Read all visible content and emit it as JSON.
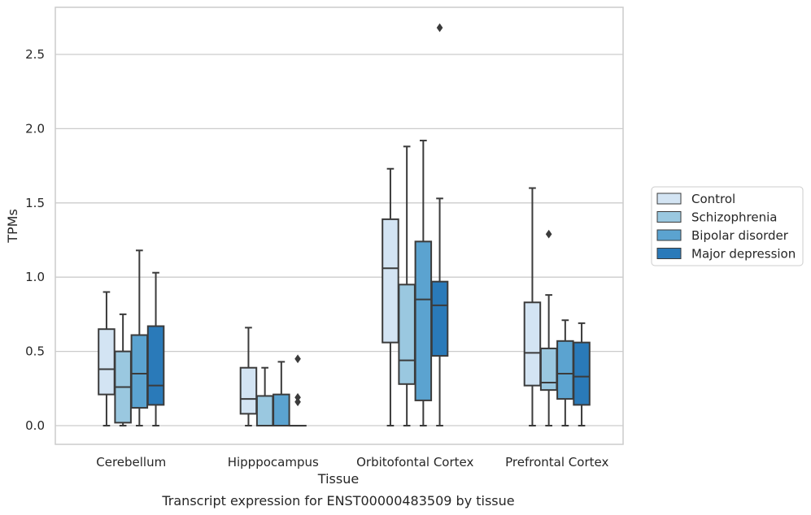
{
  "chart_data": {
    "type": "box",
    "caption": "Transcript expression for ENST00000483509 by tissue",
    "xlabel": "Tissue",
    "ylabel": "TPMs",
    "ylim": [
      -0.13,
      2.83
    ],
    "yticks": [
      "0.0",
      "0.5",
      "1.0",
      "1.5",
      "2.0",
      "2.5"
    ],
    "grid": "horizontal",
    "legend_position": "right",
    "categories": [
      "Cerebellum",
      "Hipppocampus",
      "Orbitofontal Cortex",
      "Prefrontal Cortex"
    ],
    "series": [
      {
        "name": "Control",
        "color": "#d3e4f3",
        "boxes": [
          {
            "whislo": 0.0,
            "q1": 0.21,
            "median": 0.38,
            "q3": 0.65,
            "whishi": 0.9,
            "fliers": []
          },
          {
            "whislo": 0.0,
            "q1": 0.08,
            "median": 0.18,
            "q3": 0.39,
            "whishi": 0.66,
            "fliers": []
          },
          {
            "whislo": 0.0,
            "q1": 0.56,
            "median": 1.06,
            "q3": 1.39,
            "whishi": 1.73,
            "fliers": []
          },
          {
            "whislo": 0.0,
            "q1": 0.27,
            "median": 0.49,
            "q3": 0.83,
            "whishi": 1.6,
            "fliers": []
          }
        ]
      },
      {
        "name": "Schizophrenia",
        "color": "#9ac8e0",
        "boxes": [
          {
            "whislo": 0.0,
            "q1": 0.02,
            "median": 0.26,
            "q3": 0.5,
            "whishi": 0.75,
            "fliers": []
          },
          {
            "whislo": 0.0,
            "q1": 0.0,
            "median": 0.0,
            "q3": 0.2,
            "whishi": 0.39,
            "fliers": []
          },
          {
            "whislo": 0.0,
            "q1": 0.28,
            "median": 0.44,
            "q3": 0.95,
            "whishi": 1.88,
            "fliers": []
          },
          {
            "whislo": 0.0,
            "q1": 0.24,
            "median": 0.29,
            "q3": 0.52,
            "whishi": 0.88,
            "fliers": [
              1.29
            ]
          }
        ]
      },
      {
        "name": "Bipolar disorder",
        "color": "#5ba3d0",
        "boxes": [
          {
            "whislo": 0.0,
            "q1": 0.12,
            "median": 0.35,
            "q3": 0.61,
            "whishi": 1.18,
            "fliers": []
          },
          {
            "whislo": 0.0,
            "q1": 0.0,
            "median": 0.0,
            "q3": 0.21,
            "whishi": 0.43,
            "fliers": []
          },
          {
            "whislo": 0.0,
            "q1": 0.17,
            "median": 0.85,
            "q3": 1.24,
            "whishi": 1.92,
            "fliers": []
          },
          {
            "whislo": 0.0,
            "q1": 0.18,
            "median": 0.35,
            "q3": 0.57,
            "whishi": 0.71,
            "fliers": []
          }
        ]
      },
      {
        "name": "Major depression",
        "color": "#2a7ab9",
        "boxes": [
          {
            "whislo": 0.0,
            "q1": 0.14,
            "median": 0.27,
            "q3": 0.67,
            "whishi": 1.03,
            "fliers": []
          },
          {
            "whislo": 0.0,
            "q1": 0.0,
            "median": 0.0,
            "q3": 0.0,
            "whishi": 0.0,
            "fliers": [
              0.45,
              0.19,
              0.16
            ]
          },
          {
            "whislo": 0.0,
            "q1": 0.47,
            "median": 0.81,
            "q3": 0.97,
            "whishi": 1.53,
            "fliers": [
              2.68
            ]
          },
          {
            "whislo": 0.0,
            "q1": 0.14,
            "median": 0.33,
            "q3": 0.56,
            "whishi": 0.69,
            "fliers": []
          }
        ]
      }
    ]
  }
}
